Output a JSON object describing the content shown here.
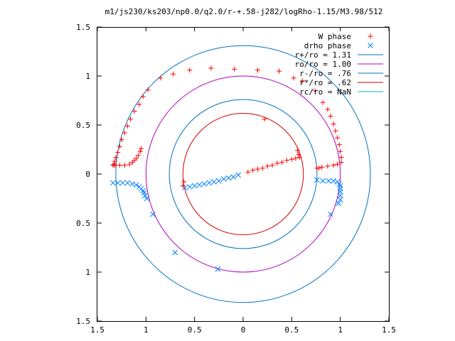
{
  "chart_data": {
    "type": "scatter",
    "title": "m1/js230/ks203/np0.0/q2.0/r-+.58-j282/logRho-1.15/M3.98/512",
    "xlim": [
      -1.5,
      1.5
    ],
    "ylim": [
      -1.5,
      1.5
    ],
    "xticks": [
      {
        "value": -1.5,
        "label": "1.5"
      },
      {
        "value": -1.0,
        "label": "1"
      },
      {
        "value": -0.5,
        "label": "0.5"
      },
      {
        "value": 0.0,
        "label": "0"
      },
      {
        "value": 0.5,
        "label": "0.5"
      },
      {
        "value": 1.0,
        "label": "1"
      },
      {
        "value": 1.5,
        "label": "1.5"
      }
    ],
    "yticks": [
      {
        "value": 1.5,
        "label": "1.5"
      },
      {
        "value": 1.0,
        "label": "1"
      },
      {
        "value": 0.5,
        "label": "0.5"
      },
      {
        "value": 0.0,
        "label": "0"
      },
      {
        "value": -0.5,
        "label": "0.5"
      },
      {
        "value": -1.0,
        "label": "1"
      },
      {
        "value": -1.5,
        "label": "1.5"
      }
    ],
    "grid": false,
    "legend_position": "top-right",
    "series": [
      {
        "name": "W phase",
        "marker": "plus",
        "color": "#ff0000",
        "points": [
          [
            -0.85,
            0.98
          ],
          [
            -0.72,
            1.02
          ],
          [
            -0.55,
            1.06
          ],
          [
            -0.33,
            1.08
          ],
          [
            -0.09,
            1.07
          ],
          [
            0.15,
            1.06
          ],
          [
            0.37,
            1.05
          ],
          [
            -0.98,
            0.86
          ],
          [
            -1.03,
            0.79
          ],
          [
            -1.07,
            0.71
          ],
          [
            -1.12,
            0.64
          ],
          [
            -1.16,
            0.56
          ],
          [
            -1.19,
            0.49
          ],
          [
            -1.22,
            0.42
          ],
          [
            -1.25,
            0.35
          ],
          [
            -1.27,
            0.28
          ],
          [
            -1.29,
            0.22
          ],
          [
            -1.31,
            0.17
          ],
          [
            -1.32,
            0.13
          ],
          [
            -1.33,
            0.1
          ],
          [
            -1.34,
            0.09
          ],
          [
            0.52,
            0.98
          ],
          [
            0.61,
            0.95
          ],
          [
            0.74,
            0.85
          ],
          [
            0.82,
            0.73
          ],
          [
            0.87,
            0.66
          ],
          [
            0.9,
            0.59
          ],
          [
            0.93,
            0.51
          ],
          [
            0.95,
            0.44
          ],
          [
            0.97,
            0.37
          ],
          [
            0.99,
            0.3
          ],
          [
            1.0,
            0.23
          ],
          [
            1.01,
            0.17
          ],
          [
            1.01,
            0.12
          ],
          [
            0.97,
            0.1
          ],
          [
            0.93,
            0.09
          ],
          [
            0.87,
            0.08
          ],
          [
            0.81,
            0.07
          ],
          [
            0.78,
            0.06
          ],
          [
            0.76,
            0.06
          ],
          [
            -1.32,
            0.09
          ],
          [
            -1.27,
            0.09
          ],
          [
            -1.22,
            0.09
          ],
          [
            -1.17,
            0.1
          ],
          [
            -1.14,
            0.12
          ],
          [
            -1.12,
            0.14
          ],
          [
            -1.1,
            0.16
          ],
          [
            -1.08,
            0.19
          ],
          [
            -1.06,
            0.23
          ],
          [
            -1.05,
            0.26
          ],
          [
            0.22,
            0.56
          ],
          [
            0.56,
            0.24
          ],
          [
            0.57,
            0.2
          ],
          [
            0.58,
            0.17
          ],
          [
            0.05,
            0.02
          ],
          [
            0.1,
            0.04
          ],
          [
            0.15,
            0.05
          ],
          [
            0.2,
            0.06
          ],
          [
            0.25,
            0.08
          ],
          [
            0.3,
            0.09
          ],
          [
            0.35,
            0.11
          ],
          [
            0.4,
            0.12
          ],
          [
            0.45,
            0.14
          ],
          [
            0.5,
            0.15
          ],
          [
            0.54,
            0.16
          ],
          [
            -0.62,
            -0.12
          ],
          [
            -0.61,
            -0.08
          ]
        ]
      },
      {
        "name": "drho phase",
        "marker": "cross",
        "color": "#0080ff",
        "points": [
          [
            -1.34,
            -0.09
          ],
          [
            -1.29,
            -0.09
          ],
          [
            -1.24,
            -0.09
          ],
          [
            -1.19,
            -0.09
          ],
          [
            -1.14,
            -0.1
          ],
          [
            -1.1,
            -0.11
          ],
          [
            -1.07,
            -0.13
          ],
          [
            -1.05,
            -0.15
          ],
          [
            -1.03,
            -0.17
          ],
          [
            -1.02,
            -0.19
          ],
          [
            -1.01,
            -0.22
          ],
          [
            -0.99,
            -0.25
          ],
          [
            -0.93,
            -0.41
          ],
          [
            -0.7,
            -0.8
          ],
          [
            -0.26,
            -0.97
          ],
          [
            0.76,
            -0.06
          ],
          [
            0.82,
            -0.07
          ],
          [
            0.88,
            -0.07
          ],
          [
            0.93,
            -0.07
          ],
          [
            0.97,
            -0.08
          ],
          [
            0.99,
            -0.1
          ],
          [
            1.0,
            -0.12
          ],
          [
            1.0,
            -0.15
          ],
          [
            1.0,
            -0.18
          ],
          [
            1.0,
            -0.22
          ],
          [
            1.0,
            -0.26
          ],
          [
            0.98,
            -0.3
          ],
          [
            0.9,
            -0.41
          ],
          [
            -0.05,
            -0.01
          ],
          [
            -0.1,
            -0.03
          ],
          [
            -0.15,
            -0.04
          ],
          [
            -0.2,
            -0.05
          ],
          [
            -0.25,
            -0.07
          ],
          [
            -0.3,
            -0.08
          ],
          [
            -0.35,
            -0.09
          ],
          [
            -0.4,
            -0.1
          ],
          [
            -0.45,
            -0.11
          ],
          [
            -0.5,
            -0.12
          ],
          [
            -0.55,
            -0.13
          ],
          [
            -0.6,
            -0.14
          ]
        ]
      },
      {
        "name": "r+/ro = 1.31",
        "type": "circle",
        "radius": 1.31,
        "color": "#0072c4"
      },
      {
        "name": "ro/ro = 1.00",
        "type": "circle",
        "radius": 1.0,
        "color": "#b000c0"
      },
      {
        "name": "r-/ro = .76",
        "type": "circle",
        "radius": 0.76,
        "color": "#0072c4"
      },
      {
        "name": "r*/ro = .62",
        "type": "circle",
        "radius": 0.62,
        "color": "#d00000"
      },
      {
        "name": "rc/ro = NaN",
        "type": "circle",
        "radius": null,
        "color": "#00c0c0"
      }
    ]
  }
}
